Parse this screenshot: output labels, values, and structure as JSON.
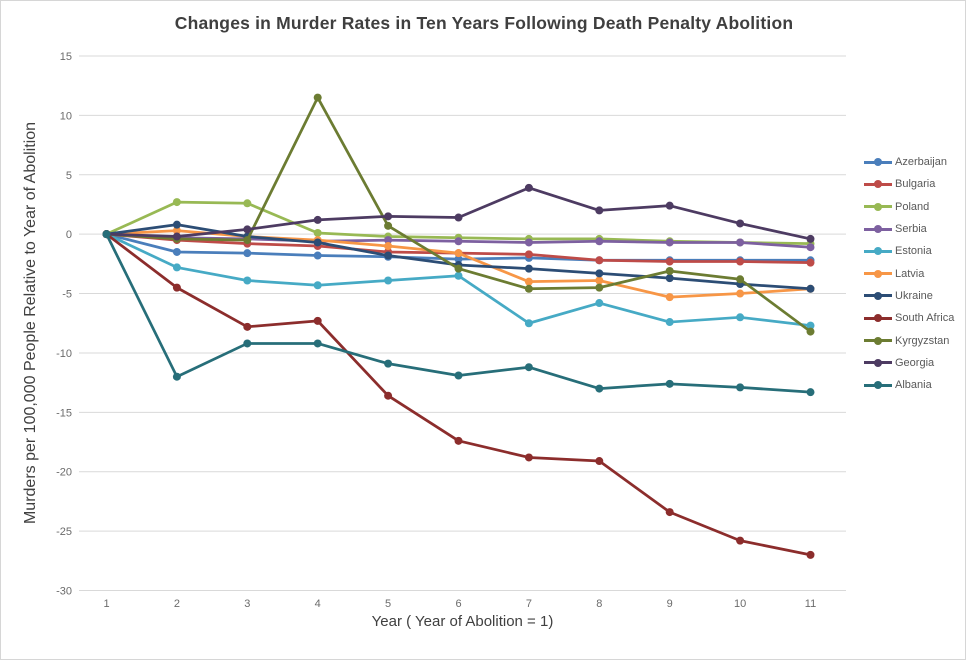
{
  "colors": {
    "background": "#ffffff",
    "frame_border": "#d6d6d6",
    "grid": "#d9d9d9",
    "title_text": "#3f3f3f",
    "axis_title_text": "#404040",
    "tick_text": "#6b6b6b",
    "legend_text": "#595959"
  },
  "chart_data": {
    "type": "line",
    "title": "Changes in Murder Rates in Ten Years Following Death Penalty Abolition",
    "xlabel": "Year ( Year of Abolition = 1)",
    "ylabel": "Murders per 100,000 People Relative to Year of Abolition",
    "x": [
      1,
      2,
      3,
      4,
      5,
      6,
      7,
      8,
      9,
      10,
      11
    ],
    "yticks": [
      15,
      10,
      5,
      0,
      -5,
      -10,
      -15,
      -20,
      -25,
      -30
    ],
    "ylim": [
      -30,
      15
    ],
    "grid": "horizontal-only",
    "legend_position": "right",
    "marker": "circle",
    "series": [
      {
        "name": "Azerbaijan",
        "color": "#4a7ebb",
        "values": [
          0,
          -1.5,
          -1.6,
          -1.8,
          -1.9,
          -2.1,
          -2.0,
          -2.2,
          -2.2,
          -2.2,
          -2.2
        ]
      },
      {
        "name": "Bulgaria",
        "color": "#be4b48",
        "values": [
          0,
          -0.5,
          -0.8,
          -1.0,
          -1.5,
          -1.6,
          -1.7,
          -2.2,
          -2.3,
          -2.3,
          -2.4
        ]
      },
      {
        "name": "Poland",
        "color": "#98b954",
        "values": [
          0,
          2.7,
          2.6,
          0.1,
          -0.2,
          -0.3,
          -0.4,
          -0.4,
          -0.6,
          -0.7,
          -0.8
        ]
      },
      {
        "name": "Serbia",
        "color": "#7d60a0",
        "values": [
          0,
          -0.3,
          -0.4,
          -0.6,
          -0.5,
          -0.6,
          -0.7,
          -0.6,
          -0.7,
          -0.7,
          -1.1
        ]
      },
      {
        "name": "Estonia",
        "color": "#46aac5",
        "values": [
          0,
          -2.8,
          -3.9,
          -4.3,
          -3.9,
          -3.5,
          -7.5,
          -5.8,
          -7.4,
          -7.0,
          -7.7
        ]
      },
      {
        "name": "Latvia",
        "color": "#f79646",
        "values": [
          0,
          0.3,
          -0.2,
          -0.5,
          -1.0,
          -1.6,
          -4.0,
          -3.9,
          -5.3,
          -5.0,
          -4.6
        ]
      },
      {
        "name": "Ukraine",
        "color": "#2c4d75",
        "values": [
          0,
          0.8,
          -0.2,
          -0.7,
          -1.8,
          -2.6,
          -2.9,
          -3.3,
          -3.7,
          -4.2,
          -4.6
        ]
      },
      {
        "name": "South Africa",
        "color": "#8c2d2c",
        "values": [
          0,
          -4.5,
          -7.8,
          -7.3,
          -13.6,
          -17.4,
          -18.8,
          -19.1,
          -23.4,
          -25.8,
          -27.0
        ]
      },
      {
        "name": "Kyrgyzstan",
        "color": "#6c7c32",
        "values": [
          0,
          -0.4,
          -0.5,
          11.5,
          0.7,
          -2.9,
          -4.6,
          -4.5,
          -3.1,
          -3.8,
          -8.2
        ]
      },
      {
        "name": "Georgia",
        "color": "#4d3b62",
        "values": [
          0,
          -0.2,
          0.4,
          1.2,
          1.5,
          1.4,
          3.9,
          2.0,
          2.4,
          0.9,
          -0.4
        ]
      },
      {
        "name": "Albania",
        "color": "#276e79",
        "values": [
          0,
          -12.0,
          -9.2,
          -9.2,
          -10.9,
          -11.9,
          -11.2,
          -13.0,
          -12.6,
          -12.9,
          -13.3
        ]
      }
    ]
  }
}
